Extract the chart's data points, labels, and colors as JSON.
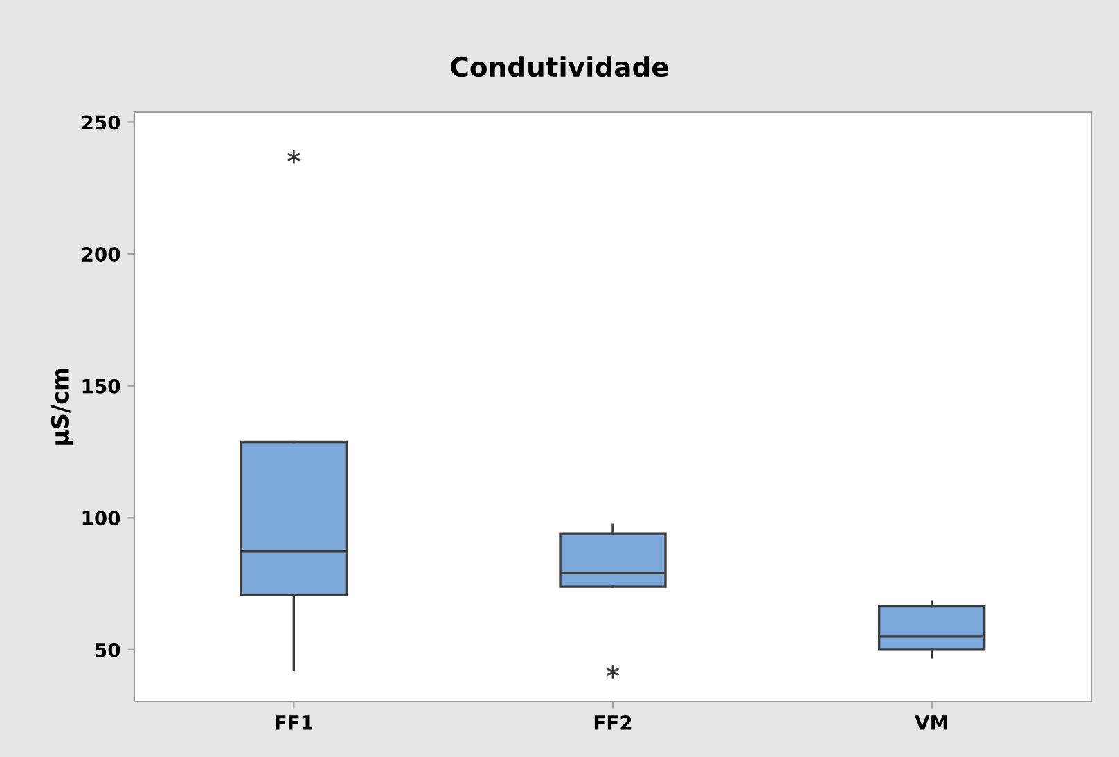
{
  "chart_data": {
    "type": "box",
    "title": "Condutividade",
    "ylabel": "µS/cm",
    "categories": [
      "FF1",
      "FF2",
      "VM"
    ],
    "color": "#7ba7d9",
    "marker": "cross",
    "ylim": [
      30.3,
      253.8
    ],
    "yticks": [
      50,
      100,
      150,
      200,
      250
    ],
    "grid": false,
    "boxes": [
      {
        "low": 42.5,
        "q1": 70.7,
        "median": 87.3,
        "q3": 128.8,
        "high": 128.8,
        "outliers": [
          236.8
        ]
      },
      {
        "low": 73.8,
        "q1": 73.8,
        "median": 79.1,
        "q3": 94.0,
        "high": 97.4,
        "outliers": [
          41.6
        ]
      },
      {
        "low": 47.1,
        "q1": 50,
        "median": 55.0,
        "q3": 66.6,
        "high": 68.3
      }
    ]
  }
}
